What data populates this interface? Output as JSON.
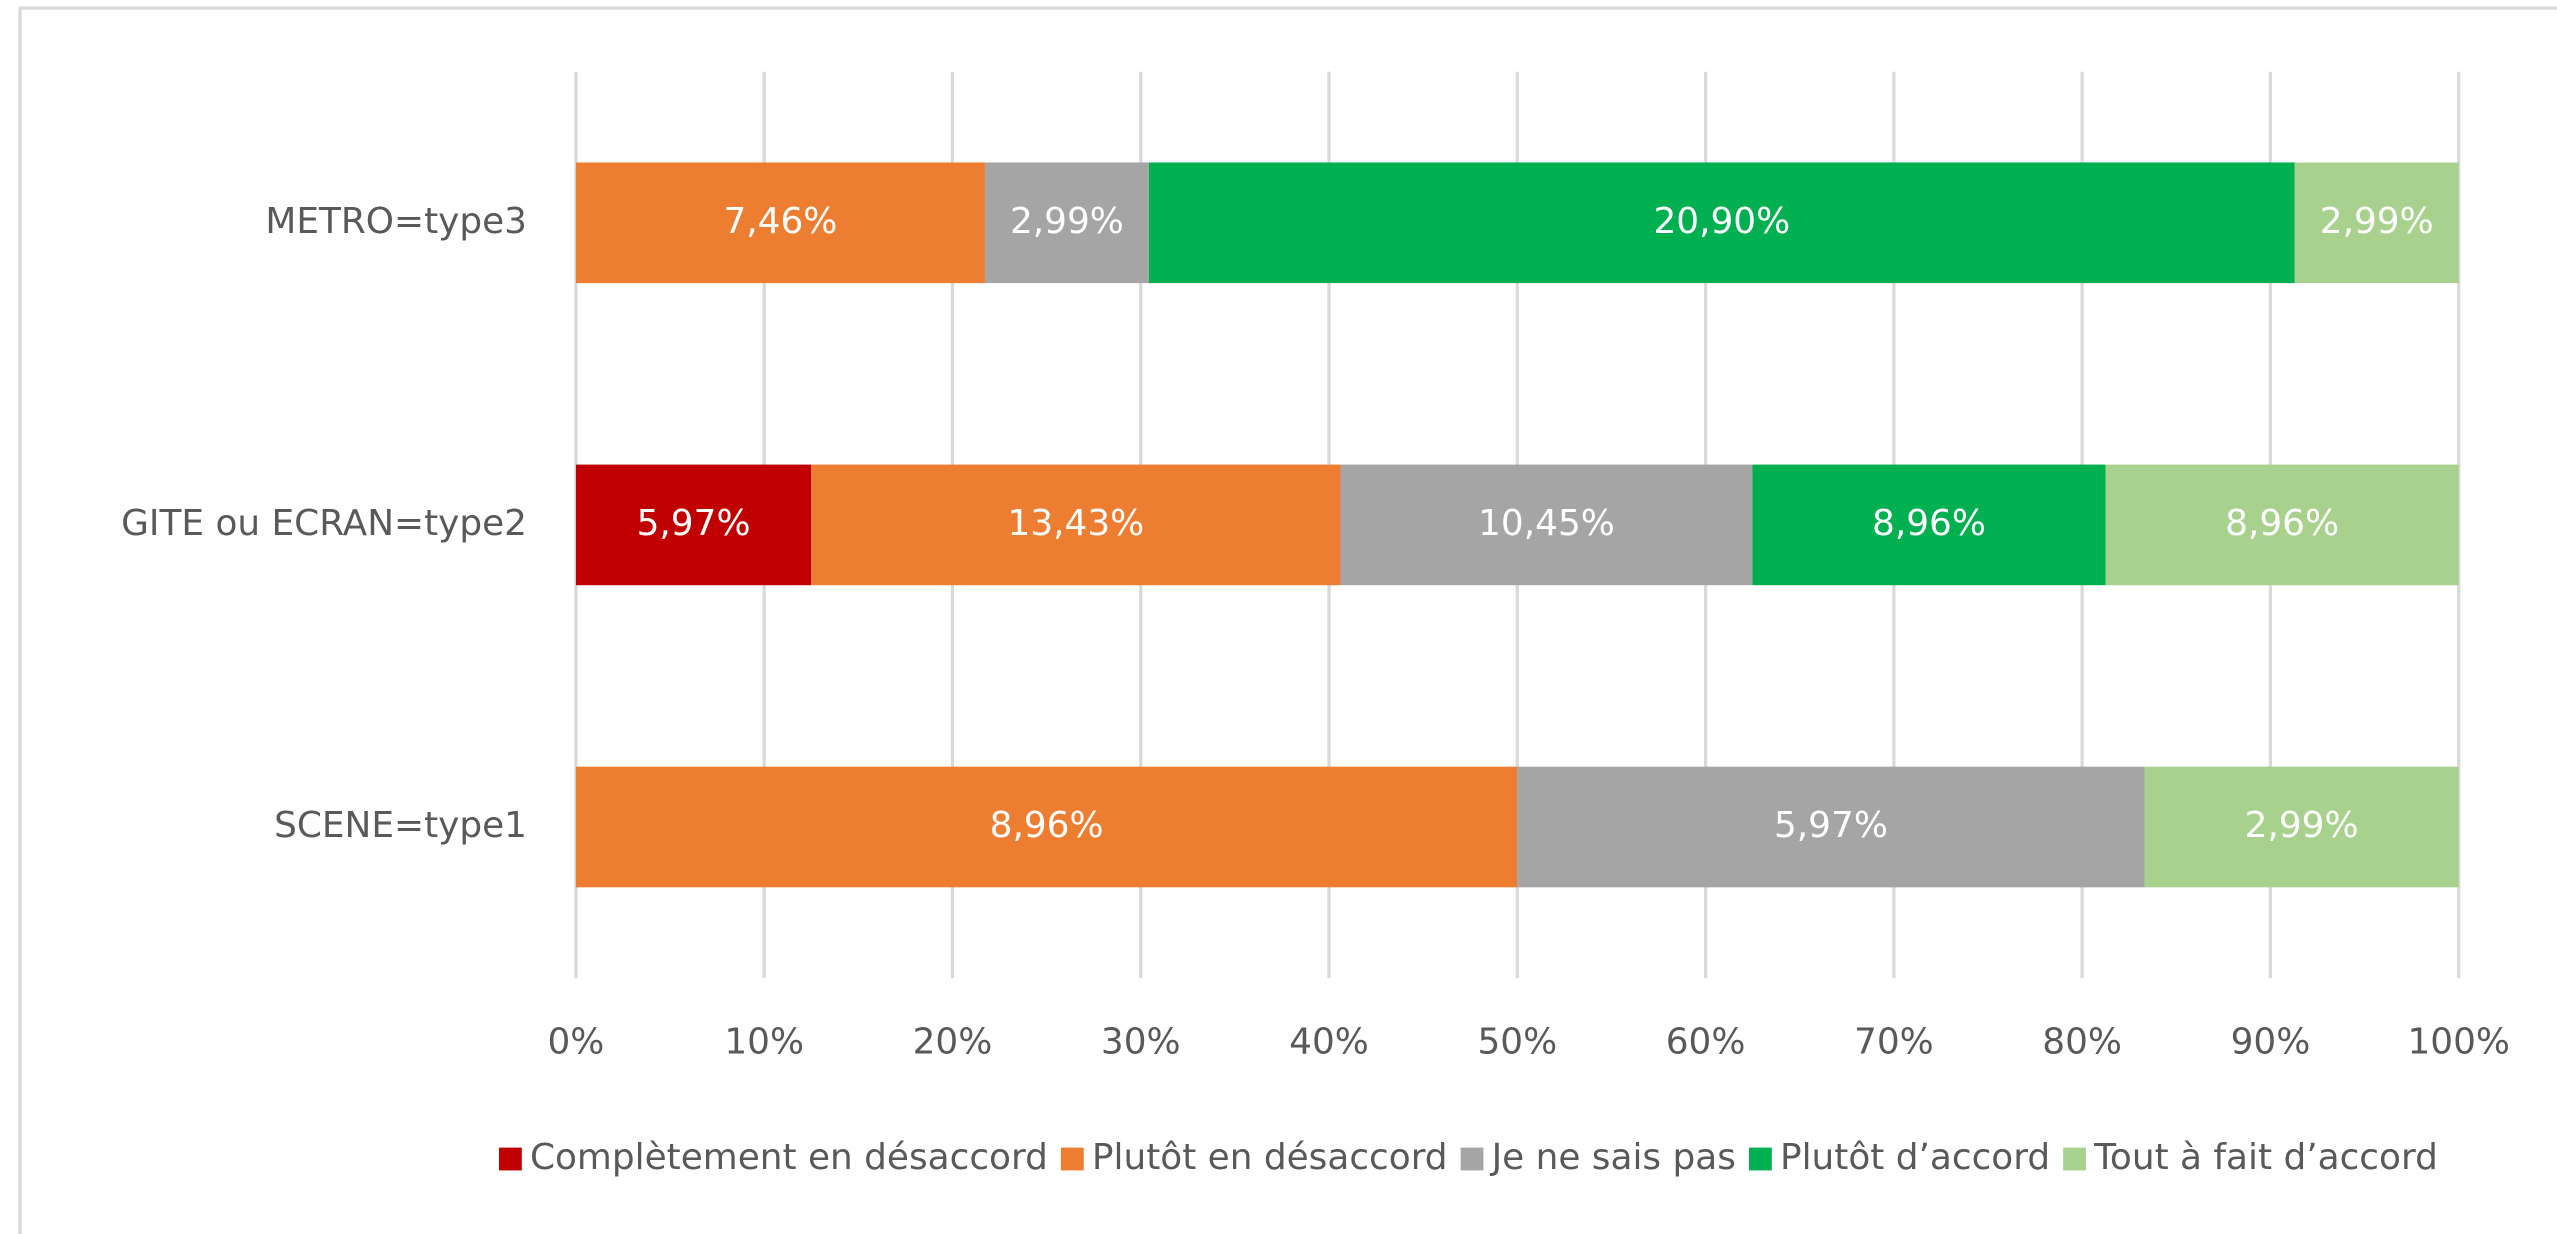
{
  "chart_data": {
    "type": "bar",
    "orientation": "horizontal",
    "stacked": "percent",
    "categories": [
      "METRO=type3",
      "GITE ou ECRAN=type2",
      "SCENE=type1"
    ],
    "series": [
      {
        "name": "Complètement en désaccord",
        "color": "#c00000",
        "values": [
          null,
          5.97,
          null
        ],
        "value_labels": [
          null,
          "5,97%",
          null
        ]
      },
      {
        "name": "Plutôt en désaccord",
        "color": "#ed7d31",
        "values": [
          7.46,
          13.43,
          8.96
        ],
        "value_labels": [
          "7,46%",
          "13,43%",
          "8,96%"
        ]
      },
      {
        "name": "Je ne sais pas",
        "color": "#a5a5a5",
        "values": [
          2.99,
          10.45,
          5.97
        ],
        "value_labels": [
          "2,99%",
          "10,45%",
          "5,97%"
        ]
      },
      {
        "name": "Plutôt d’accord",
        "color": "#00b050",
        "values": [
          20.9,
          8.96,
          null
        ],
        "value_labels": [
          "20,90%",
          "8,96%",
          null
        ]
      },
      {
        "name": "Tout à fait d’accord",
        "color": "#a9d18e",
        "values": [
          2.99,
          8.96,
          2.99
        ],
        "value_labels": [
          "2,99%",
          "8,96%",
          "2,99%"
        ]
      }
    ],
    "xlim": [
      0,
      100
    ],
    "xticks": [
      {
        "value": 0,
        "label": "0%"
      },
      {
        "value": 10,
        "label": "10%"
      },
      {
        "value": 20,
        "label": "20%"
      },
      {
        "value": 30,
        "label": "30%"
      },
      {
        "value": 40,
        "label": "40%"
      },
      {
        "value": 50,
        "label": "50%"
      },
      {
        "value": 60,
        "label": "60%"
      },
      {
        "value": 70,
        "label": "70%"
      },
      {
        "value": 80,
        "label": "80%"
      },
      {
        "value": 90,
        "label": "90%"
      },
      {
        "value": 100,
        "label": "100%"
      }
    ],
    "grid": true,
    "legend": "bottom"
  }
}
